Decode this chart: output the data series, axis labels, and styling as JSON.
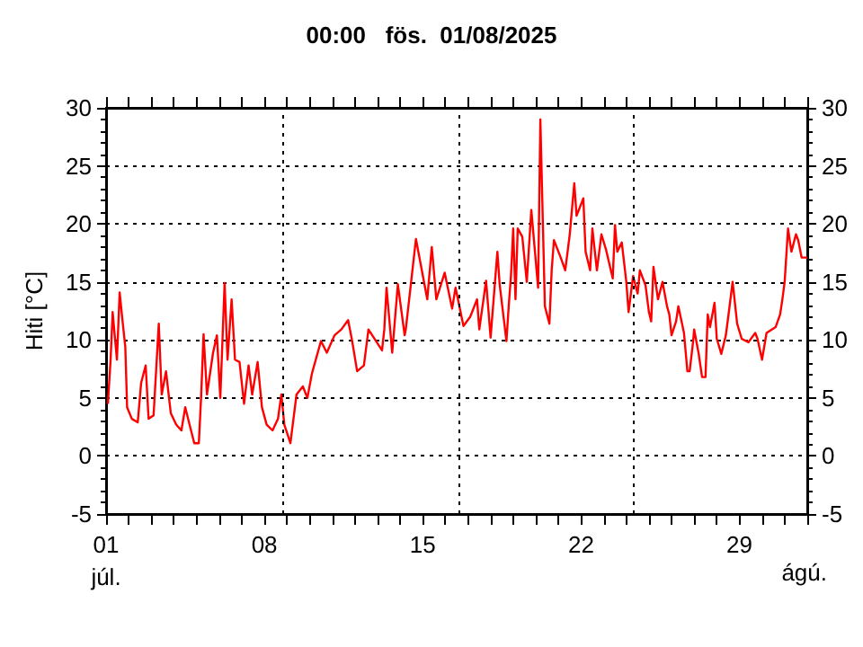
{
  "chart_data": {
    "type": "line",
    "title": "00:00   fös.  01/08/2025",
    "ylabel": "Hiti [°C]",
    "x": [
      1.08,
      1.2,
      1.29,
      1.48,
      1.6,
      1.74,
      1.85,
      1.93,
      2.14,
      2.4,
      2.55,
      2.75,
      2.88,
      3.1,
      3.33,
      3.46,
      3.65,
      3.86,
      4.1,
      4.33,
      4.5,
      4.69,
      4.9,
      5.1,
      5.2,
      5.31,
      5.46,
      5.73,
      5.9,
      6.05,
      6.24,
      6.37,
      6.55,
      6.7,
      6.9,
      7.1,
      7.3,
      7.46,
      7.7,
      7.89,
      8.1,
      8.36,
      8.6,
      8.75,
      8.88,
      9.15,
      9.42,
      9.7,
      9.9,
      10.1,
      10.5,
      10.76,
      11.1,
      11.4,
      11.7,
      11.88,
      12.1,
      12.4,
      12.6,
      13.2,
      13.3,
      13.4,
      13.65,
      13.9,
      14.2,
      14.25,
      14.7,
      15.2,
      15.4,
      15.6,
      15.97,
      16.3,
      16.45,
      16.8,
      17.1,
      17.4,
      17.5,
      17.8,
      18.0,
      18.3,
      18.4,
      18.7,
      18.8,
      18.9,
      19.0,
      19.1,
      19.2,
      19.4,
      19.6,
      19.8,
      20.1,
      20.2,
      20.4,
      20.6,
      20.7,
      20.8,
      21.1,
      21.3,
      21.5,
      21.7,
      21.8,
      22.1,
      22.2,
      22.4,
      22.5,
      22.7,
      22.9,
      23.1,
      23.4,
      23.5,
      23.6,
      23.8,
      24.0,
      24.1,
      24.3,
      24.5,
      24.6,
      24.85,
      25.0,
      25.1,
      25.2,
      25.4,
      25.6,
      25.8,
      25.9,
      26.0,
      26.2,
      26.3,
      26.55,
      26.7,
      26.8,
      26.95,
      27.0,
      27.2,
      27.35,
      27.5,
      27.6,
      27.7,
      27.9,
      28.0,
      28.2,
      28.4,
      28.5,
      28.7,
      28.9,
      29.1,
      29.4,
      29.7,
      29.8,
      30.0,
      30.2,
      30.6,
      30.8,
      30.9,
      31.0,
      31.15,
      31.3,
      31.5,
      31.6,
      31.75,
      32.0
    ],
    "series": [
      {
        "color": "#ff0000",
        "values": [
          4.5,
          8.3,
          12.4,
          8.3,
          14.1,
          11.4,
          9.4,
          4.2,
          3.2,
          2.9,
          6.3,
          7.8,
          3.2,
          3.5,
          11.4,
          5.3,
          7.3,
          3.7,
          2.7,
          2.2,
          4.2,
          2.7,
          1.1,
          1.1,
          5.0,
          10.5,
          5.3,
          8.9,
          10.4,
          5.0,
          14.9,
          8.3,
          13.5,
          8.3,
          8.1,
          4.5,
          7.8,
          5.3,
          8.1,
          4.2,
          2.7,
          2.2,
          3.2,
          5.3,
          2.7,
          1.1,
          5.3,
          6.0,
          5.0,
          7.1,
          9.9,
          8.9,
          10.4,
          10.9,
          11.7,
          9.9,
          7.3,
          7.8,
          10.9,
          9.1,
          10.9,
          14.5,
          8.9,
          14.8,
          10.4,
          10.9,
          18.7,
          13.5,
          18.0,
          13.5,
          15.8,
          12.7,
          14.5,
          11.2,
          12.0,
          13.5,
          10.9,
          15.1,
          10.2,
          17.6,
          14.8,
          9.9,
          12.9,
          15.5,
          19.6,
          13.5,
          19.6,
          18.9,
          15.0,
          21.2,
          14.5,
          29.0,
          12.9,
          11.4,
          16.0,
          18.6,
          17.1,
          16.0,
          19.1,
          23.5,
          20.7,
          22.2,
          17.6,
          16.0,
          19.6,
          16.0,
          19.1,
          17.8,
          15.3,
          19.9,
          17.6,
          18.4,
          15.0,
          12.4,
          15.5,
          14.0,
          16.0,
          14.7,
          12.4,
          11.6,
          16.3,
          13.5,
          15.0,
          12.9,
          12.2,
          10.4,
          11.6,
          12.9,
          10.6,
          7.3,
          7.3,
          9.8,
          10.9,
          8.8,
          6.8,
          6.8,
          12.2,
          11.1,
          13.2,
          10.1,
          8.8,
          10.4,
          11.9,
          15.0,
          11.4,
          10.1,
          9.8,
          10.6,
          10.1,
          8.3,
          10.6,
          11.1,
          12.2,
          13.5,
          15.0,
          19.6,
          17.6,
          19.1,
          18.6,
          17.1,
          17.1
        ]
      }
    ],
    "xlim": [
      1,
      32
    ],
    "xticks": [
      {
        "value": 1,
        "label": "01\njúl."
      },
      {
        "value": 2,
        "label": null
      },
      {
        "value": 3,
        "label": null
      },
      {
        "value": 4,
        "label": null
      },
      {
        "value": 5,
        "label": null
      },
      {
        "value": 6,
        "label": null
      },
      {
        "value": 7,
        "label": null
      },
      {
        "value": 8,
        "label": "08"
      },
      {
        "value": 9,
        "label": null
      },
      {
        "value": 10,
        "label": null
      },
      {
        "value": 11,
        "label": null
      },
      {
        "value": 12,
        "label": null
      },
      {
        "value": 13,
        "label": null
      },
      {
        "value": 14,
        "label": null
      },
      {
        "value": 15,
        "label": "15"
      },
      {
        "value": 16,
        "label": null
      },
      {
        "value": 17,
        "label": null
      },
      {
        "value": 18,
        "label": null
      },
      {
        "value": 19,
        "label": null
      },
      {
        "value": 20,
        "label": null
      },
      {
        "value": 21,
        "label": null
      },
      {
        "value": 22,
        "label": "22"
      },
      {
        "value": 23,
        "label": null
      },
      {
        "value": 24,
        "label": null
      },
      {
        "value": 25,
        "label": null
      },
      {
        "value": 26,
        "label": null
      },
      {
        "value": 27,
        "label": null
      },
      {
        "value": 28,
        "label": null
      },
      {
        "value": 29,
        "label": "29"
      },
      {
        "value": 30,
        "label": null
      },
      {
        "value": 31,
        "label": null
      },
      {
        "value": 32,
        "label": null
      }
    ],
    "annotations": [
      "ágú."
    ],
    "ylim": [
      -5,
      30
    ],
    "yticks": [
      -5,
      0,
      5,
      10,
      15,
      20,
      25,
      30
    ],
    "y2lim": [
      -5,
      30
    ],
    "y2ticks": [
      -5,
      0,
      5,
      10,
      15,
      20,
      25,
      30
    ],
    "grid": "y",
    "line_style": "solid",
    "marker": "none",
    "ref_lines": [
      {
        "axis": "x",
        "value": 8.79,
        "line_style": "dotted"
      },
      {
        "axis": "x",
        "value": 16.58,
        "line_style": "dotted"
      },
      {
        "axis": "x",
        "value": 24.29,
        "line_style": "dotted"
      }
    ]
  }
}
